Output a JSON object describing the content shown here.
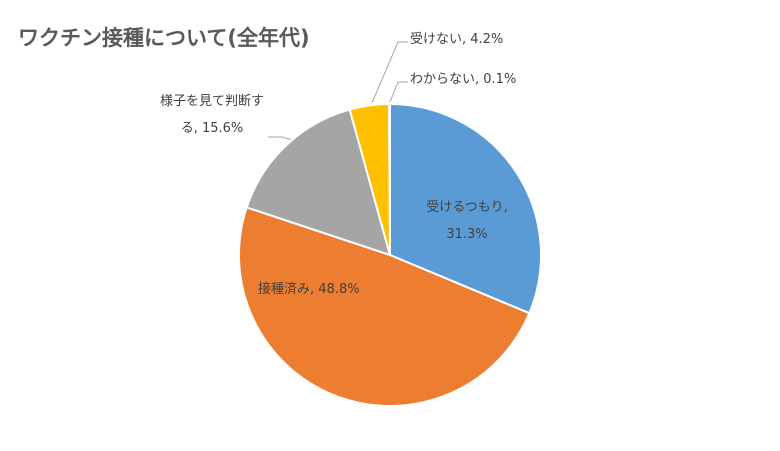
{
  "chart_data": {
    "type": "pie",
    "title": "ワクチン接種について(全年代)",
    "values": [
      31.3,
      48.8,
      15.6,
      4.2,
      0.1
    ],
    "value_labels": [
      "受けるつもり, 31.3%",
      "接種済み, 48.8%",
      "様子を見て判断する, 15.6%",
      "受けない, 4.2%",
      "わからない, 0.1%"
    ],
    "colors": [
      "#5b9bd5",
      "#ed7d31",
      "#a5a5a5",
      "#ffc000",
      "#4472c4"
    ]
  }
}
